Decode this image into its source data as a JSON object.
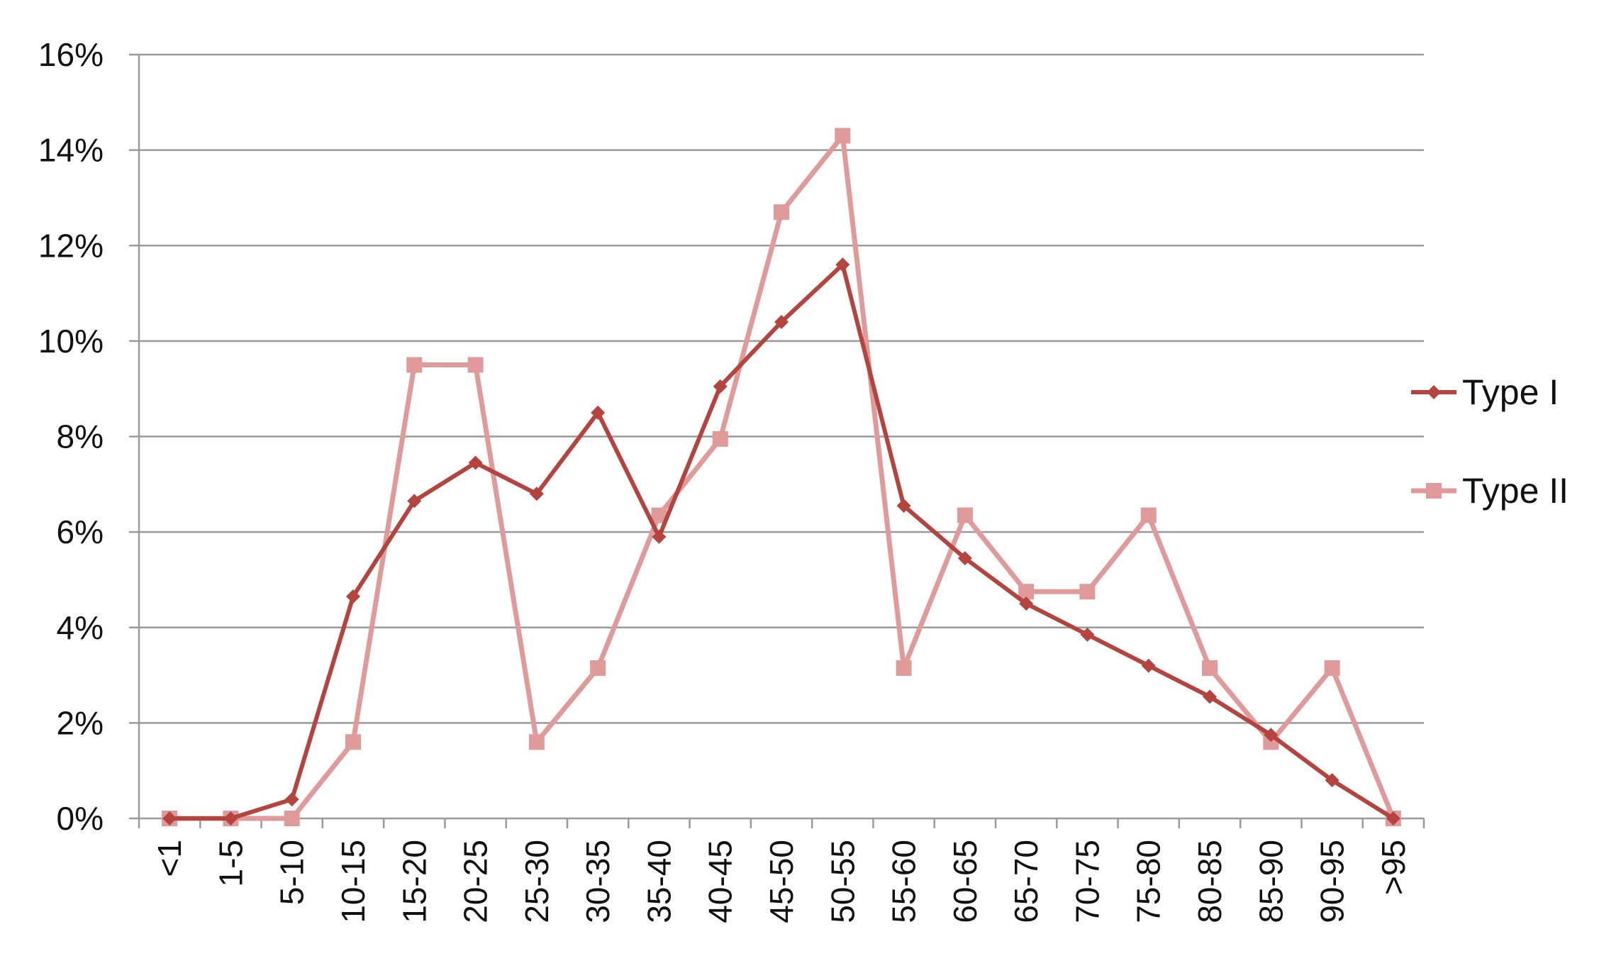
{
  "chart_data": {
    "type": "line",
    "title": "",
    "xlabel": "",
    "ylabel": "",
    "ylim": [
      0,
      16
    ],
    "y_ticks": [
      0,
      2,
      4,
      6,
      8,
      10,
      12,
      14,
      16
    ],
    "y_tick_labels": [
      "0%",
      "2%",
      "4%",
      "6%",
      "8%",
      "10%",
      "12%",
      "14%",
      "16%"
    ],
    "grid": "horizontal",
    "legend_position": "right",
    "categories": [
      "<1",
      "1-5",
      "5-10",
      "10-15",
      "15-20",
      "20-25",
      "25-30",
      "30-35",
      "35-40",
      "40-45",
      "45-50",
      "50-55",
      "55-60",
      "60-65",
      "65-70",
      "70-75",
      "75-80",
      "80-85",
      "85-90",
      "90-95",
      ">95"
    ],
    "series": [
      {
        "name": "Type I",
        "marker": "diamond",
        "color": "#b5443f",
        "values": [
          0,
          0,
          0.4,
          4.65,
          6.65,
          7.45,
          6.8,
          8.5,
          5.9,
          9.05,
          10.4,
          11.6,
          6.55,
          5.45,
          4.5,
          3.85,
          3.2,
          2.55,
          1.75,
          0.8,
          0
        ]
      },
      {
        "name": "Type II",
        "marker": "square",
        "color": "#e09a9a",
        "values": [
          0,
          0,
          0,
          1.6,
          9.5,
          9.5,
          1.6,
          3.15,
          6.35,
          7.95,
          12.7,
          14.3,
          3.15,
          6.35,
          4.75,
          4.75,
          6.35,
          3.15,
          1.6,
          3.15,
          0
        ]
      }
    ]
  }
}
